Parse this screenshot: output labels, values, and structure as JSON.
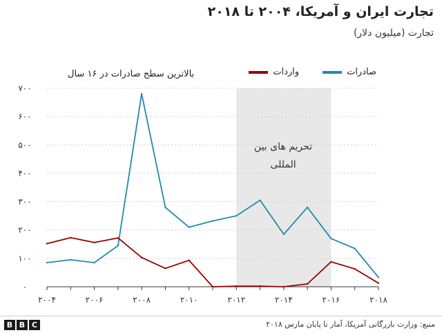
{
  "title": "تجارت ایران و آمریکا، ۲۰۰۴ تا ۲۰۱۸",
  "subtitle": "تجارت (میلیون دلار)",
  "note": "بالاترین سطح صادرات در ۱۶ سال",
  "shaded_label_lines": [
    "تحریم های بین",
    "المللی"
  ],
  "source": "منبع: وزارت بازرگانی آمریکا، آمار تا پایان مارس ۲۰۱۸",
  "brand": {
    "letters": [
      "B",
      "B",
      "C"
    ]
  },
  "colors": {
    "exports": "#1f8ca6",
    "imports": "#990000",
    "shade": "#e8e8e8",
    "grid": "#d0d0d0"
  },
  "chart_data": {
    "type": "line",
    "x": [
      2004,
      2005,
      2006,
      2007,
      2008,
      2009,
      2010,
      2011,
      2012,
      2013,
      2014,
      2015,
      2016,
      2017,
      2018
    ],
    "series": [
      {
        "name": "صادرات",
        "color": "#1f8ca6",
        "values": [
          85,
          95,
          85,
          145,
          680,
          280,
          210,
          232,
          250,
          305,
          185,
          280,
          170,
          135,
          33
        ]
      },
      {
        "name": "واردات",
        "color": "#990000",
        "values": [
          152,
          173,
          156,
          172,
          103,
          65,
          93,
          0,
          2,
          2,
          0,
          10,
          88,
          63,
          13
        ]
      }
    ],
    "ylim": [
      0,
      700
    ],
    "yticks": [
      0,
      100,
      200,
      300,
      400,
      500,
      600,
      700
    ],
    "ytick_labels": [
      "۰",
      "۱۰۰",
      "۲۰۰",
      "۳۰۰",
      "۴۰۰",
      "۵۰۰",
      "۶۰۰",
      "۷۰۰"
    ],
    "xlim": [
      2004,
      2018
    ],
    "xticks": [
      2004,
      2006,
      2008,
      2010,
      2012,
      2014,
      2016,
      2018
    ],
    "xtick_labels": [
      "۲۰۰۴",
      "۲۰۰۶",
      "۲۰۰۸",
      "۲۰۱۰",
      "۲۰۱۲",
      "۲۰۱۴",
      "۲۰۱۶",
      "۲۰۱۸"
    ],
    "shaded_region": [
      2012,
      2016
    ],
    "grid": true,
    "legend": "top-right",
    "annotation": {
      "text": "بالاترین سطح صادرات در ۱۶ سال",
      "x": 2008,
      "y": 680
    }
  }
}
